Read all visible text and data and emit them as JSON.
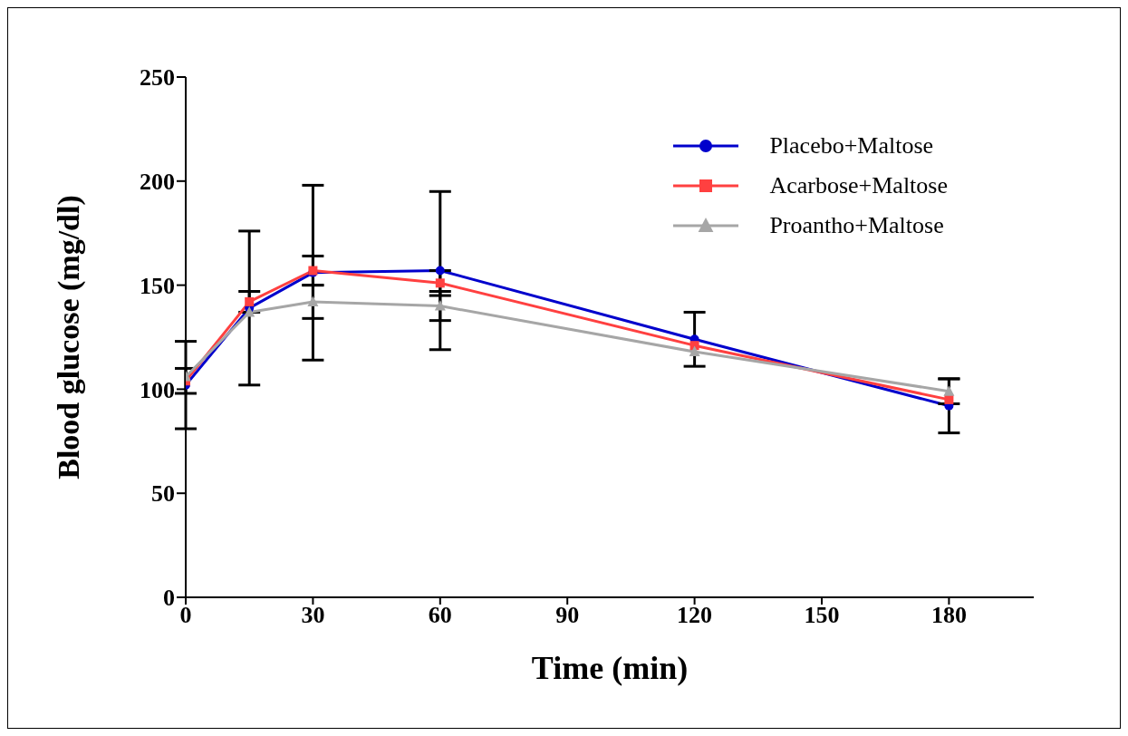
{
  "chart_data": {
    "type": "line",
    "xlabel": "Time (min)",
    "ylabel": "Blood glucose (mg/dl)",
    "x": [
      0,
      15,
      30,
      60,
      120,
      180
    ],
    "xlim": [
      0,
      200
    ],
    "xticks": [
      0,
      30,
      60,
      90,
      120,
      150,
      180
    ],
    "ylim": [
      0,
      250
    ],
    "yticks": [
      0,
      50,
      100,
      150,
      200,
      250
    ],
    "grid": false,
    "legend": "top right",
    "line_style": "solid",
    "series": [
      {
        "name": "Placebo+Maltose",
        "color": "#0000cc",
        "marker": "circle",
        "values": [
          102,
          139,
          156,
          157,
          124,
          92
        ],
        "errors": [
          21,
          37,
          42,
          38,
          13,
          13
        ]
      },
      {
        "name": "Acarbose+Maltose",
        "color": "#ff4040",
        "marker": "square",
        "values": [
          104,
          142,
          157,
          151,
          121,
          95
        ],
        "errors": [
          6,
          5,
          7,
          6,
          null,
          null
        ]
      },
      {
        "name": "Proantho+Maltose",
        "color": "#a6a6a6",
        "marker": "triangle",
        "values": [
          106,
          137,
          142,
          140,
          118,
          99
        ],
        "errors": [
          null,
          null,
          8,
          7,
          null,
          6
        ]
      }
    ]
  }
}
